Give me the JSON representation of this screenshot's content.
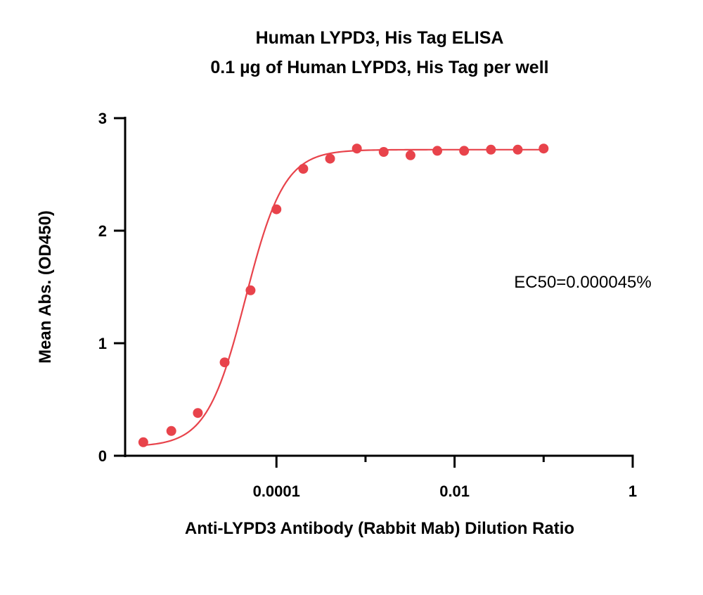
{
  "chart_data": {
    "type": "scatter",
    "title": "Human LYPD3, His Tag ELISA",
    "subtitle": "0.1 µg of Human LYPD3, His Tag per well",
    "xlabel": "Anti-LYPD3 Antibody (Rabbit Mab) Dilution Ratio",
    "ylabel": "Mean Abs. (OD450)",
    "x_scale": "log",
    "xlim": [
      2e-06,
      1
    ],
    "ylim": [
      0,
      3
    ],
    "x_ticks": [
      {
        "value": 0.0001,
        "label": "0.0001"
      },
      {
        "value": 0.01,
        "label": "0.01"
      },
      {
        "value": 1,
        "label": "1"
      }
    ],
    "y_ticks": [
      {
        "value": 0,
        "label": "0"
      },
      {
        "value": 1,
        "label": "1"
      },
      {
        "value": 2,
        "label": "2"
      },
      {
        "value": 3,
        "label": "3"
      }
    ],
    "annotation": "EC50=0.000045%",
    "series": [
      {
        "color": "#e8434b",
        "x": [
          3.2e-06,
          6.6e-06,
          1.31e-05,
          2.62e-05,
          5.12e-05,
          0.0001,
          0.0002,
          0.0004,
          0.0008,
          0.0016,
          0.0032,
          0.0064,
          0.0128,
          0.0256,
          0.0512,
          0.1
        ],
        "y": [
          0.12,
          0.22,
          0.38,
          0.83,
          1.47,
          2.19,
          2.55,
          2.64,
          2.73,
          2.7,
          2.67,
          2.71,
          2.71,
          2.72,
          2.72,
          2.73
        ],
        "fit": {
          "bottom": 0.08,
          "top": 2.72,
          "ec50": 4.5e-05,
          "hill": 2.0
        }
      }
    ]
  }
}
